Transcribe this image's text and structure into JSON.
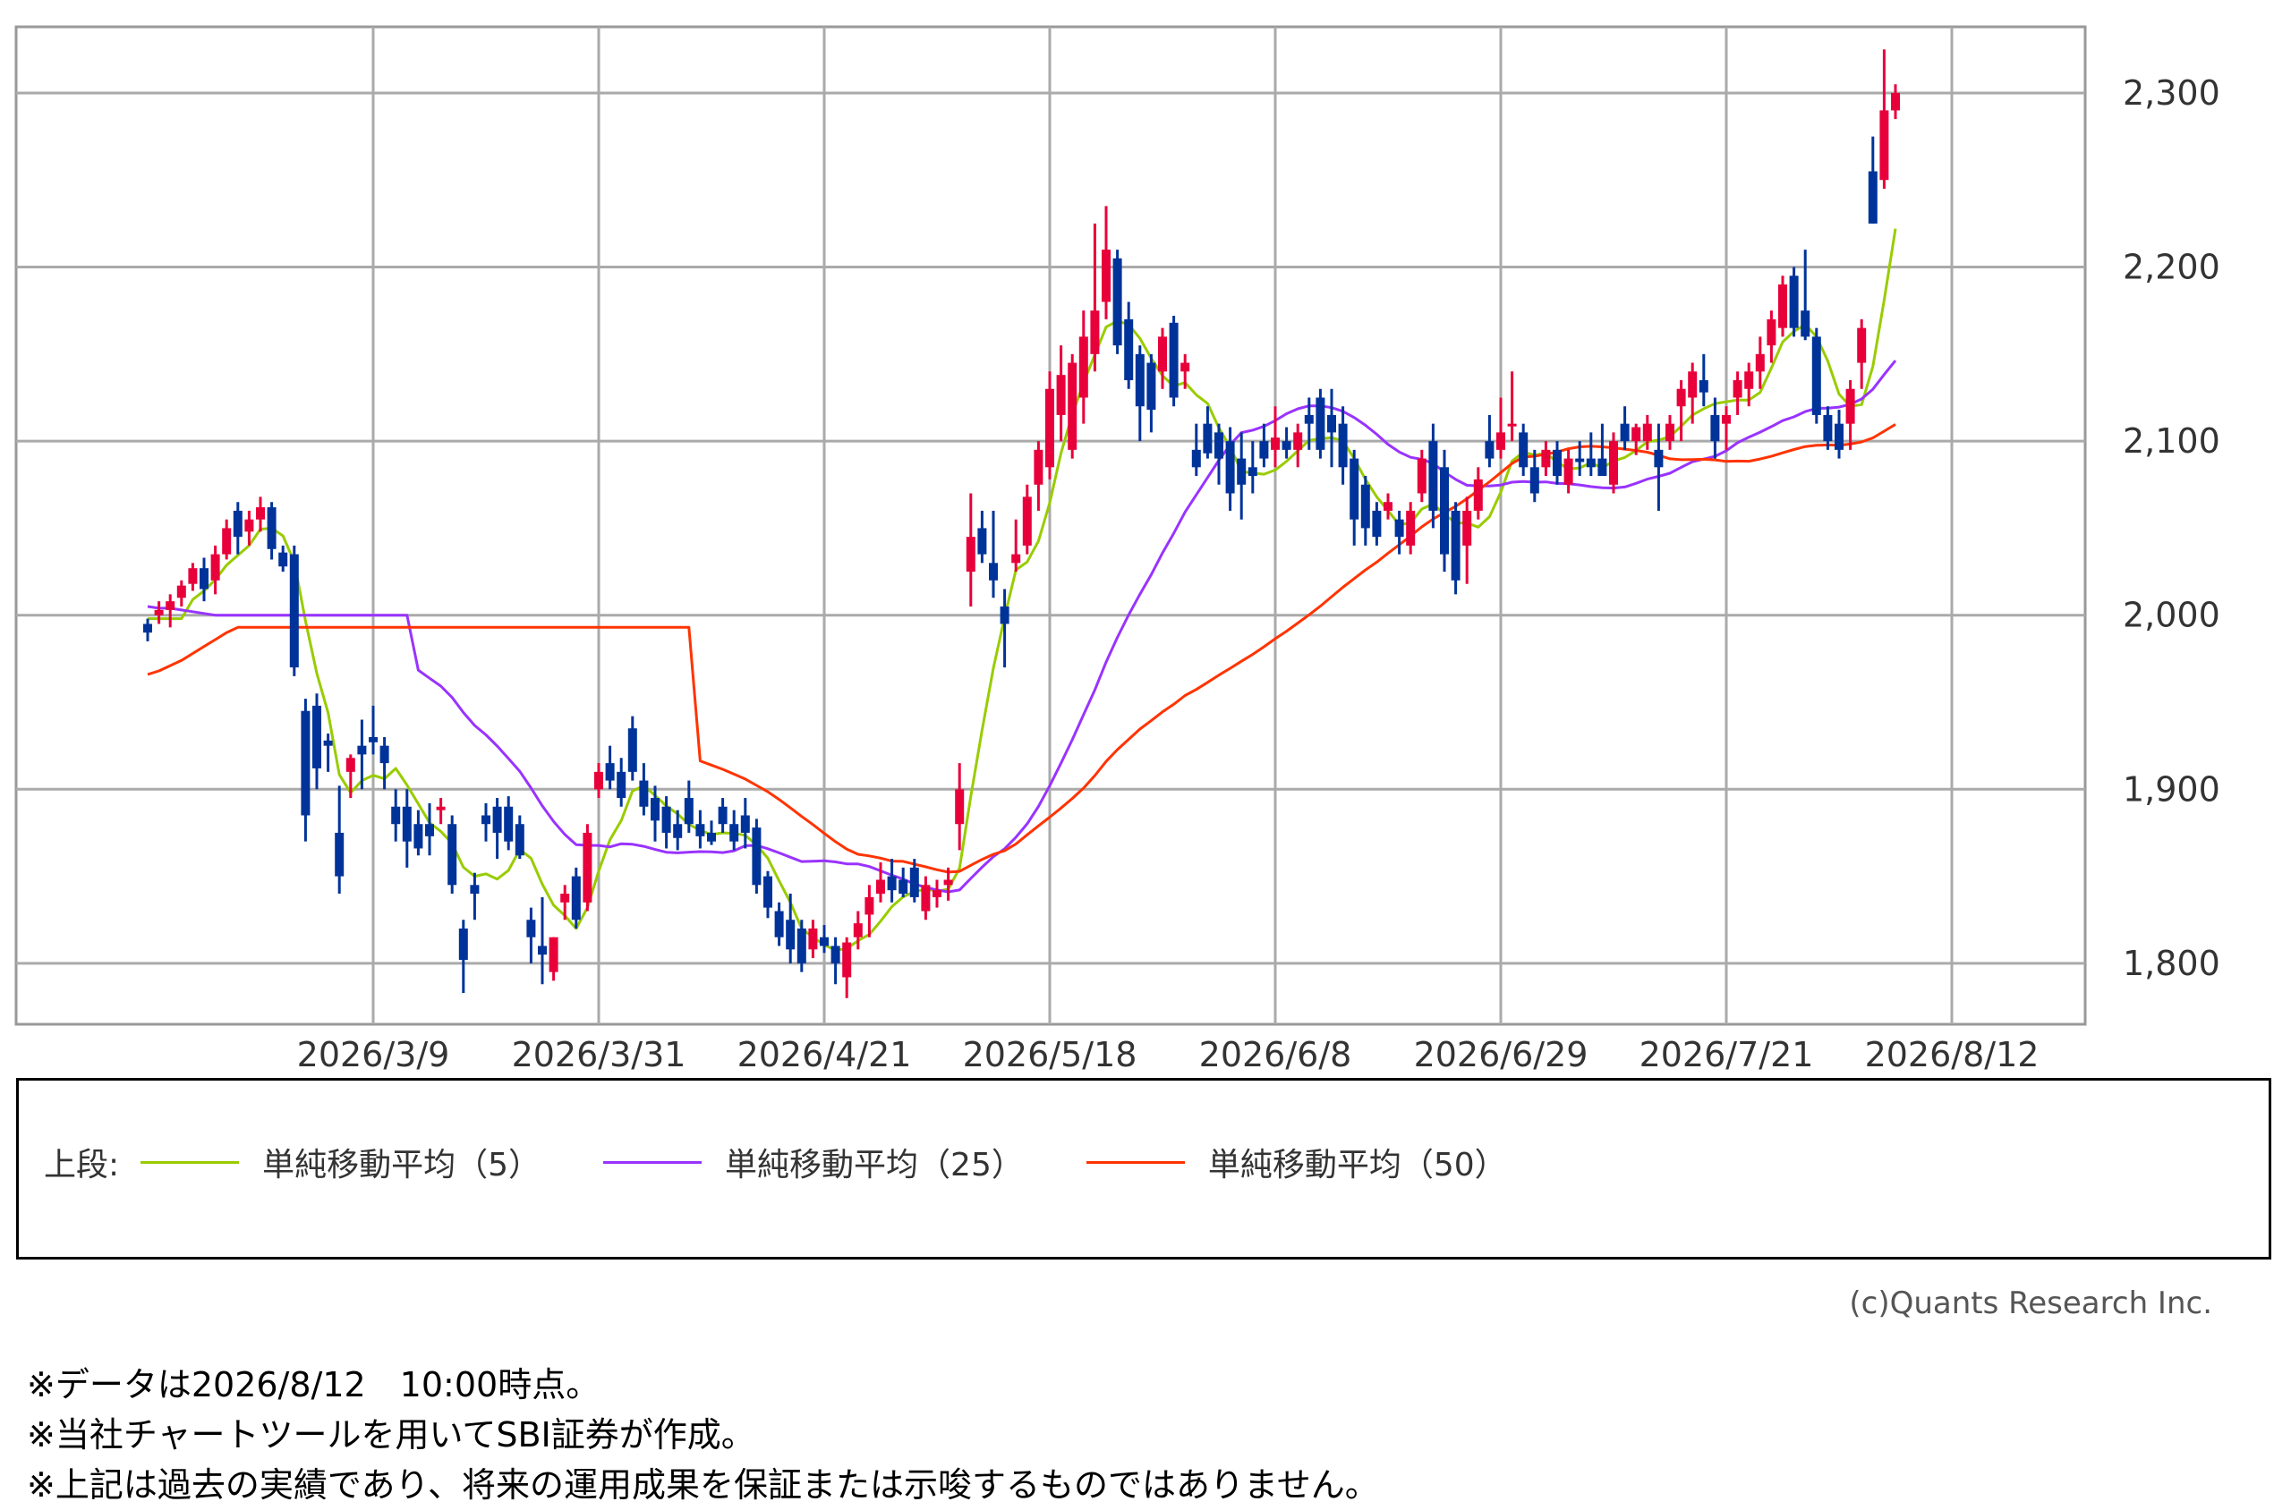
{
  "chart_data": {
    "type": "candlestick",
    "y_ticks": [
      "1,800",
      "1,900",
      "2,000",
      "2,100",
      "2,200",
      "2,300"
    ],
    "y_tick_values": [
      1800,
      1900,
      2000,
      2100,
      2200,
      2300
    ],
    "ylim": [
      1765,
      2338
    ],
    "x_ticks": [
      "2026/3/9",
      "2026/3/31",
      "2026/4/21",
      "2026/5/18",
      "2026/6/8",
      "2026/6/29",
      "2026/7/21",
      "2026/8/12"
    ],
    "x_tick_index": [
      20,
      40,
      60,
      80,
      100,
      120,
      140,
      160
    ],
    "grid": true,
    "up_color": "#e8003a",
    "down_color": "#003399",
    "candles": [
      [
        1995,
        1998,
        1985,
        1990
      ],
      [
        2000,
        2008,
        1995,
        2003
      ],
      [
        2003,
        2012,
        1993,
        2008
      ],
      [
        2010,
        2020,
        2005,
        2017
      ],
      [
        2018,
        2030,
        2014,
        2027
      ],
      [
        2027,
        2033,
        2008,
        2015
      ],
      [
        2020,
        2040,
        2012,
        2035
      ],
      [
        2035,
        2055,
        2032,
        2050
      ],
      [
        2060,
        2065,
        2035,
        2045
      ],
      [
        2048,
        2060,
        2040,
        2055
      ],
      [
        2055,
        2068,
        2048,
        2062
      ],
      [
        2062,
        2065,
        2032,
        2038
      ],
      [
        2036,
        2040,
        2025,
        2028
      ],
      [
        2035,
        2040,
        1965,
        1970
      ],
      [
        1945,
        1952,
        1870,
        1885
      ],
      [
        1948,
        1955,
        1900,
        1912
      ],
      [
        1928,
        1932,
        1910,
        1925
      ],
      [
        1875,
        1902,
        1840,
        1850
      ],
      [
        1910,
        1920,
        1895,
        1918
      ],
      [
        1925,
        1940,
        1900,
        1920
      ],
      [
        1930,
        1948,
        1920,
        1927
      ],
      [
        1925,
        1930,
        1900,
        1915
      ],
      [
        1890,
        1900,
        1870,
        1880
      ],
      [
        1890,
        1900,
        1855,
        1870
      ],
      [
        1880,
        1888,
        1862,
        1866
      ],
      [
        1880,
        1892,
        1862,
        1873
      ],
      [
        1888,
        1895,
        1880,
        1890
      ],
      [
        1880,
        1885,
        1840,
        1845
      ],
      [
        1820,
        1825,
        1783,
        1802
      ],
      [
        1845,
        1852,
        1825,
        1840
      ],
      [
        1885,
        1892,
        1870,
        1880
      ],
      [
        1890,
        1895,
        1860,
        1875
      ],
      [
        1890,
        1896,
        1865,
        1870
      ],
      [
        1880,
        1885,
        1860,
        1862
      ],
      [
        1825,
        1832,
        1800,
        1815
      ],
      [
        1810,
        1838,
        1788,
        1805
      ],
      [
        1795,
        1815,
        1790,
        1815
      ],
      [
        1835,
        1845,
        1825,
        1840
      ],
      [
        1850,
        1855,
        1820,
        1825
      ],
      [
        1835,
        1880,
        1830,
        1875
      ],
      [
        1900,
        1915,
        1895,
        1910
      ],
      [
        1915,
        1925,
        1900,
        1905
      ],
      [
        1910,
        1918,
        1890,
        1895
      ],
      [
        1935,
        1942,
        1905,
        1910
      ],
      [
        1905,
        1915,
        1885,
        1890
      ],
      [
        1895,
        1902,
        1870,
        1882
      ],
      [
        1890,
        1896,
        1866,
        1875
      ],
      [
        1880,
        1888,
        1865,
        1872
      ],
      [
        1895,
        1905,
        1875,
        1880
      ],
      [
        1880,
        1888,
        1866,
        1873
      ],
      [
        1875,
        1882,
        1868,
        1870
      ],
      [
        1890,
        1895,
        1875,
        1880
      ],
      [
        1880,
        1888,
        1865,
        1870
      ],
      [
        1885,
        1895,
        1866,
        1875
      ],
      [
        1878,
        1883,
        1840,
        1845
      ],
      [
        1850,
        1853,
        1826,
        1832
      ],
      [
        1830,
        1835,
        1810,
        1815
      ],
      [
        1825,
        1840,
        1800,
        1808
      ],
      [
        1820,
        1825,
        1795,
        1800
      ],
      [
        1808,
        1825,
        1803,
        1820
      ],
      [
        1815,
        1822,
        1806,
        1810
      ],
      [
        1810,
        1815,
        1788,
        1800
      ],
      [
        1792,
        1815,
        1780,
        1812
      ],
      [
        1815,
        1830,
        1808,
        1823
      ],
      [
        1828,
        1845,
        1815,
        1838
      ],
      [
        1840,
        1858,
        1835,
        1848
      ],
      [
        1850,
        1860,
        1835,
        1842
      ],
      [
        1848,
        1855,
        1838,
        1840
      ],
      [
        1855,
        1860,
        1835,
        1838
      ],
      [
        1830,
        1850,
        1825,
        1845
      ],
      [
        1838,
        1848,
        1832,
        1842
      ],
      [
        1845,
        1855,
        1836,
        1848
      ],
      [
        1880,
        1915,
        1865,
        1900
      ],
      [
        2025,
        2070,
        2005,
        2045
      ],
      [
        2050,
        2060,
        2030,
        2035
      ],
      [
        2030,
        2060,
        2010,
        2020
      ],
      [
        2005,
        2015,
        1970,
        1995
      ],
      [
        2030,
        2055,
        2025,
        2035
      ],
      [
        2040,
        2075,
        2035,
        2068
      ],
      [
        2075,
        2100,
        2060,
        2095
      ],
      [
        2085,
        2140,
        2078,
        2130
      ],
      [
        2115,
        2155,
        2100,
        2138
      ],
      [
        2095,
        2150,
        2090,
        2145
      ],
      [
        2125,
        2175,
        2110,
        2160
      ],
      [
        2150,
        2225,
        2140,
        2175
      ],
      [
        2180,
        2235,
        2170,
        2210
      ],
      [
        2205,
        2210,
        2150,
        2155
      ],
      [
        2170,
        2180,
        2130,
        2135
      ],
      [
        2150,
        2155,
        2100,
        2120
      ],
      [
        2145,
        2150,
        2105,
        2118
      ],
      [
        2140,
        2165,
        2130,
        2160
      ],
      [
        2168,
        2172,
        2120,
        2125
      ],
      [
        2140,
        2150,
        2130,
        2145
      ],
      [
        2095,
        2110,
        2080,
        2085
      ],
      [
        2110,
        2120,
        2090,
        2093
      ],
      [
        2105,
        2110,
        2075,
        2090
      ],
      [
        2100,
        2108,
        2060,
        2070
      ],
      [
        2090,
        2105,
        2055,
        2075
      ],
      [
        2085,
        2100,
        2070,
        2080
      ],
      [
        2100,
        2110,
        2085,
        2090
      ],
      [
        2095,
        2120,
        2085,
        2102
      ],
      [
        2100,
        2108,
        2090,
        2095
      ],
      [
        2095,
        2110,
        2085,
        2105
      ],
      [
        2115,
        2125,
        2095,
        2110
      ],
      [
        2125,
        2130,
        2090,
        2095
      ],
      [
        2115,
        2130,
        2085,
        2105
      ],
      [
        2110,
        2120,
        2075,
        2085
      ],
      [
        2090,
        2095,
        2040,
        2055
      ],
      [
        2075,
        2080,
        2040,
        2050
      ],
      [
        2060,
        2065,
        2040,
        2045
      ],
      [
        2060,
        2070,
        2055,
        2065
      ],
      [
        2055,
        2060,
        2035,
        2045
      ],
      [
        2040,
        2065,
        2035,
        2060
      ],
      [
        2070,
        2095,
        2065,
        2090
      ],
      [
        2100,
        2110,
        2050,
        2060
      ],
      [
        2085,
        2095,
        2025,
        2035
      ],
      [
        2060,
        2065,
        2012,
        2020
      ],
      [
        2040,
        2068,
        2018,
        2060
      ],
      [
        2060,
        2085,
        2055,
        2078
      ],
      [
        2100,
        2115,
        2085,
        2090
      ],
      [
        2095,
        2125,
        2090,
        2105
      ],
      [
        2110,
        2140,
        2100,
        2110
      ],
      [
        2105,
        2110,
        2080,
        2085
      ],
      [
        2085,
        2095,
        2065,
        2070
      ],
      [
        2085,
        2100,
        2080,
        2095
      ],
      [
        2095,
        2100,
        2075,
        2080
      ],
      [
        2075,
        2095,
        2070,
        2090
      ],
      [
        2090,
        2100,
        2080,
        2088
      ],
      [
        2090,
        2105,
        2080,
        2085
      ],
      [
        2090,
        2110,
        2080,
        2080
      ],
      [
        2075,
        2105,
        2070,
        2100
      ],
      [
        2110,
        2120,
        2095,
        2100
      ],
      [
        2100,
        2110,
        2092,
        2108
      ],
      [
        2100,
        2115,
        2095,
        2110
      ],
      [
        2095,
        2110,
        2060,
        2085
      ],
      [
        2100,
        2115,
        2095,
        2110
      ],
      [
        2120,
        2135,
        2100,
        2130
      ],
      [
        2125,
        2145,
        2110,
        2140
      ],
      [
        2135,
        2150,
        2120,
        2128
      ],
      [
        2115,
        2125,
        2090,
        2100
      ],
      [
        2110,
        2120,
        2095,
        2115
      ],
      [
        2125,
        2140,
        2115,
        2135
      ],
      [
        2130,
        2145,
        2120,
        2140
      ],
      [
        2140,
        2160,
        2130,
        2150
      ],
      [
        2155,
        2175,
        2145,
        2170
      ],
      [
        2165,
        2195,
        2160,
        2190
      ],
      [
        2195,
        2200,
        2160,
        2165
      ],
      [
        2175,
        2210,
        2158,
        2160
      ],
      [
        2160,
        2165,
        2110,
        2115
      ],
      [
        2115,
        2120,
        2095,
        2100
      ],
      [
        2110,
        2118,
        2090,
        2095
      ],
      [
        2110,
        2135,
        2095,
        2130
      ],
      [
        2145,
        2170,
        2130,
        2165
      ],
      [
        2255,
        2275,
        2225,
        2225
      ],
      [
        2250,
        2325,
        2245,
        2290
      ],
      [
        2290,
        2305,
        2285,
        2300
      ]
    ],
    "series": [
      {
        "name": "単純移動平均（5）",
        "color": "#99cc00"
      },
      {
        "name": "単純移動平均（25）",
        "color": "#9933ff"
      },
      {
        "name": "単純移動平均（50）",
        "color": "#ff3300"
      }
    ],
    "ma_warmup": {
      "ma5_start": [
        1998
      ],
      "ma25_start": [
        2005,
        2004,
        2004,
        2003,
        2002,
        2001,
        2000
      ],
      "ma50_start": [
        1966,
        1968,
        1971,
        1974,
        1978,
        1982,
        1986,
        1990,
        1993
      ]
    }
  },
  "legend": {
    "title": "上段:",
    "items": [
      "単純移動平均（5）",
      "単純移動平均（25）",
      "単純移動平均（50）"
    ]
  },
  "copyright": "(c)Quants Research Inc.",
  "notes": [
    "※データは2026/8/12　10:00時点。",
    "※当社チャートツールを用いてSBI証券が作成。",
    "※上記は過去の実績であり、将来の運用成果を保証または示唆するものではありません。"
  ]
}
